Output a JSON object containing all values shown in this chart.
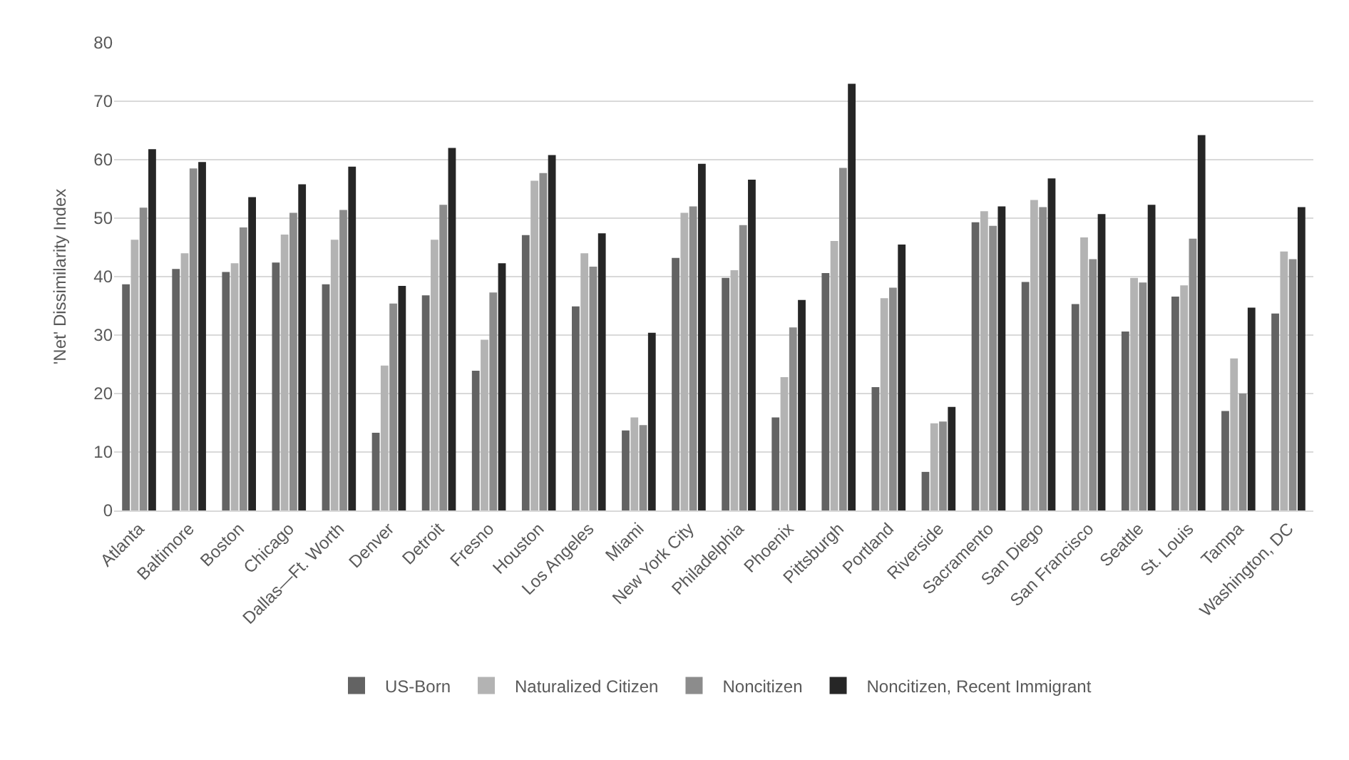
{
  "chart_data": {
    "type": "bar",
    "ylabel": "'Net' Dissimilarity Index",
    "categories": [
      "Atlanta",
      "Baltimore",
      "Boston",
      "Chicago",
      "Dallas—Ft. Worth",
      "Denver",
      "Detroit",
      "Fresno",
      "Houston",
      "Los Angeles",
      "Miami",
      "New York City",
      "Philadelphia",
      "Phoenix",
      "Pittsburgh",
      "Portland",
      "Riverside",
      "Sacramento",
      "San Diego",
      "San Francisco",
      "Seattle",
      "St. Louis",
      "Tampa",
      "Washington, DC"
    ],
    "series": [
      {
        "name": "US-Born",
        "color": "#636363",
        "values": [
          38.7,
          41.3,
          40.8,
          42.4,
          38.7,
          13.3,
          36.8,
          23.9,
          47.1,
          34.9,
          13.7,
          43.2,
          39.8,
          15.9,
          40.6,
          21.1,
          6.6,
          49.3,
          39.1,
          35.3,
          30.6,
          36.6,
          17,
          33.7
        ]
      },
      {
        "name": "Naturalized Citizen",
        "color": "#b3b3b3",
        "values": [
          46.3,
          44,
          42.3,
          47.2,
          46.3,
          24.8,
          46.3,
          29.2,
          56.4,
          44,
          15.9,
          50.9,
          41.1,
          22.8,
          46.1,
          36.3,
          14.9,
          51.2,
          53.1,
          46.7,
          39.8,
          38.5,
          26,
          44.3
        ]
      },
      {
        "name": "Noncitizen",
        "color": "#8c8c8c",
        "values": [
          51.8,
          58.5,
          48.4,
          50.9,
          51.4,
          35.4,
          52.3,
          37.3,
          57.7,
          41.7,
          14.6,
          52,
          48.8,
          31.3,
          58.6,
          38.1,
          15.2,
          48.7,
          51.9,
          43,
          39,
          46.5,
          20,
          43
        ]
      },
      {
        "name": "Noncitizen, Recent Immigrant",
        "color": "#262626",
        "values": [
          61.8,
          59.6,
          53.6,
          55.8,
          58.8,
          38.4,
          62,
          42.3,
          60.8,
          47.4,
          30.4,
          59.3,
          56.6,
          36,
          73,
          45.5,
          17.7,
          52,
          56.8,
          50.7,
          52.3,
          64.2,
          34.7,
          51.9
        ]
      }
    ],
    "ylim": [
      0,
      80
    ],
    "yticks": [
      0,
      10,
      20,
      30,
      40,
      50,
      60,
      70,
      80
    ],
    "grid": "y",
    "legend": "bottom"
  }
}
